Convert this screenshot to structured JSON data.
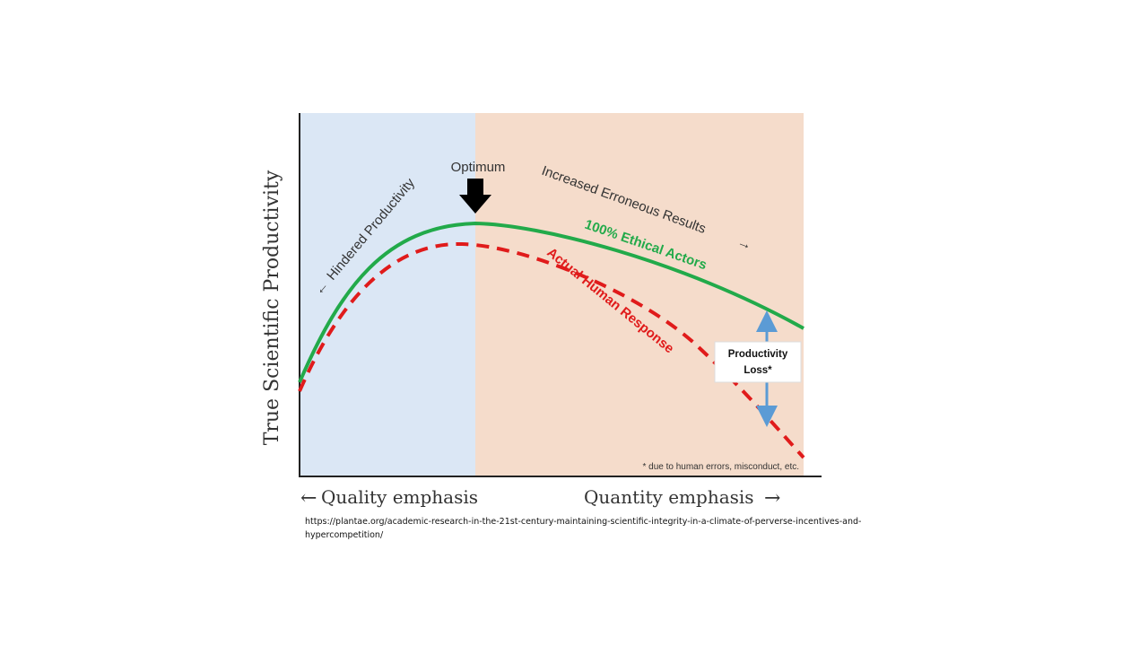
{
  "diagram": {
    "y_axis_label": "True Scientific Productivity",
    "x_axis_left": "Quality emphasis",
    "x_axis_right": "Quantity emphasis",
    "optimum_label": "Optimum",
    "hindered_label": "Hindered Productivity",
    "erroneous_label": "Increased Erroneous Results",
    "ethical_label": "100% Ethical Actors",
    "human_label": "Actual Human Response",
    "loss_label_line1": "Productivity",
    "loss_label_line2": "Loss*",
    "footnote": "* due to human errors, misconduct, etc.",
    "colors": {
      "quality_region": "#dbe7f5",
      "quantity_region": "#f5dccb",
      "ethical_curve": "#22aa4a",
      "human_curve": "#e01b1b",
      "loss_arrow": "#5b9bd5"
    }
  },
  "source": {
    "line1": "https://plantae.org/academic-research-in-the-21st-century-maintaining-scientific-integrity-in-a-climate-of-perverse-incentives-and-",
    "line2": "hypercompetition/"
  }
}
